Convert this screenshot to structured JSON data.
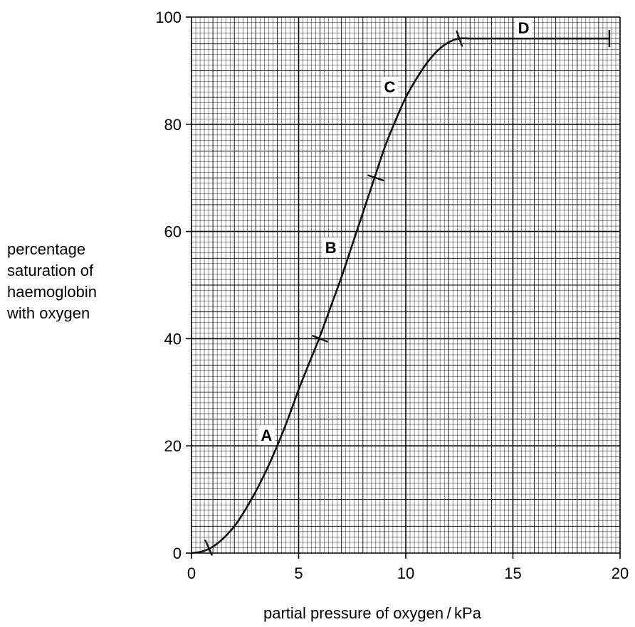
{
  "chart_data": {
    "type": "line",
    "title": "",
    "xlabel": "partial pressure of oxygen / kPa",
    "ylabel_lines": [
      "percentage",
      "saturation of",
      "haemoglobin",
      "with oxygen"
    ],
    "xlim": [
      0,
      20
    ],
    "ylim": [
      0,
      100
    ],
    "x_ticks": [
      0,
      5,
      10,
      15,
      20
    ],
    "y_ticks": [
      0,
      20,
      40,
      60,
      80,
      100
    ],
    "x_tick_labels": [
      "0",
      "5",
      "10",
      "15",
      "20"
    ],
    "y_tick_labels": [
      "0",
      "20",
      "40",
      "60",
      "80",
      "100"
    ],
    "grid": true,
    "series": [
      {
        "x": [
          0,
          0.5,
          1,
          1.5,
          2,
          2.5,
          3,
          3.5,
          4,
          4.5,
          5,
          5.5,
          6,
          6.5,
          7,
          7.5,
          8,
          8.5,
          9,
          9.5,
          10,
          10.5,
          11,
          11.5,
          12,
          12.5,
          13,
          14,
          15,
          16,
          17,
          18,
          19,
          19.5
        ],
        "y": [
          0,
          0.3,
          1.2,
          2.8,
          5,
          8,
          11.5,
          15.5,
          20,
          25,
          30.5,
          35.5,
          40.5,
          46,
          51.5,
          57.5,
          63.5,
          69.5,
          75.5,
          80.5,
          85,
          88.5,
          91.5,
          93.8,
          95.3,
          96,
          96,
          96,
          96,
          96,
          96,
          96,
          96,
          96
        ]
      }
    ],
    "region_markers": [
      {
        "x": 0.8,
        "y": 1
      },
      {
        "x": 6,
        "y": 40
      },
      {
        "x": 8.6,
        "y": 70
      },
      {
        "x": 12.5,
        "y": 96
      },
      {
        "x": 19.5,
        "y": 96
      }
    ],
    "region_labels": [
      {
        "text": "A",
        "x": 3.5,
        "y": 22
      },
      {
        "text": "B",
        "x": 6.5,
        "y": 57
      },
      {
        "text": "C",
        "x": 9.25,
        "y": 87
      },
      {
        "text": "D",
        "x": 15.5,
        "y": 98
      }
    ]
  }
}
